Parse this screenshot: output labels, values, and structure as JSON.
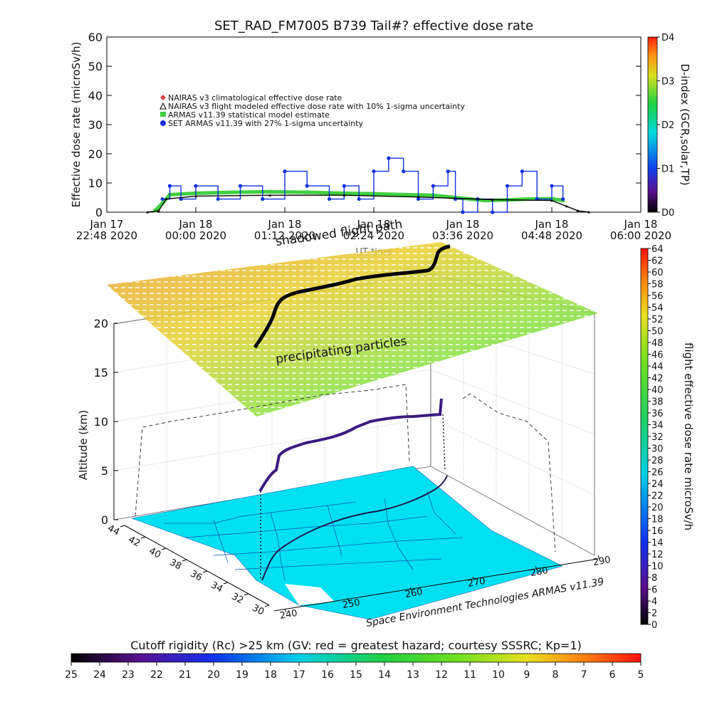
{
  "top_panel": {
    "title": "SET_RAD_FM7005   B739 Tail#? effective dose rate",
    "ylabel": "Effective dose rate (microSv/h)",
    "xlabel": "UT time",
    "right_axis_label": "D-index (GCR,solar,TP)",
    "right_ticks": [
      "D4",
      "D3",
      "D2",
      "D1",
      "D0"
    ],
    "right_tick_values": [
      4,
      3,
      2,
      1,
      0
    ],
    "xticks": [
      {
        "line1": "Jan 17",
        "line2": "22:48 2020",
        "h": -1.2
      },
      {
        "line1": "Jan 18",
        "line2": "00:00 2020",
        "h": 0.0
      },
      {
        "line1": "Jan 18",
        "line2": "01:12 2020",
        "h": 1.2
      },
      {
        "line1": "Jan 18",
        "line2": "02:24 2020",
        "h": 2.4
      },
      {
        "line1": "Jan 18",
        "line2": "03:36 2020",
        "h": 3.6
      },
      {
        "line1": "Jan 18",
        "line2": "04:48 2020",
        "h": 4.8
      },
      {
        "line1": "Jan 18",
        "line2": "06:00 2020",
        "h": 6.0
      }
    ],
    "legend": [
      {
        "label": "NAIRAS v3 climatological effective dose rate",
        "color": "#e04040",
        "marker": "diamond"
      },
      {
        "label": "NAIRAS v3 flight modeled effective dose rate with 10% 1-sigma uncertainty",
        "color": "#000000",
        "marker": "triangle"
      },
      {
        "label": "ARMAS v11.39 statistical model estimate",
        "color": "#40d040",
        "marker": "square"
      },
      {
        "label": "SET ARMAS v11.39 with 27% 1-sigma uncertainty",
        "color": "#1030e0",
        "marker": "circle"
      }
    ]
  },
  "chart_data": {
    "type": "scatter",
    "title": "SET_RAD_FM7005   B739 Tail#? effective dose rate",
    "xlabel": "UT time",
    "ylabel": "Effective dose rate (microSv/h)",
    "xlim_hours_from_jan18_0000": [
      -1.2,
      6.0
    ],
    "ylim": [
      0,
      60
    ],
    "yticks": [
      0,
      10,
      20,
      30,
      40,
      50,
      60
    ],
    "series": [
      {
        "name": "ARMAS v11.39 statistical model estimate",
        "x_hours": [
          -0.55,
          -0.45,
          -0.35,
          0.0,
          0.5,
          1.0,
          1.5,
          2.0,
          2.4,
          2.8,
          3.2,
          3.5,
          3.9,
          4.2,
          4.5,
          4.8,
          4.95
        ],
        "values": [
          0.5,
          3,
          6,
          6.5,
          6.8,
          7.0,
          6.8,
          6.5,
          6.3,
          6.0,
          5.8,
          5.0,
          4.0,
          4.2,
          4.5,
          4.6,
          4.0
        ]
      },
      {
        "name": "SET ARMAS v11.39 with 27% 1-sigma uncertainty",
        "x_hours": [
          -0.45,
          -0.35,
          -0.2,
          0.0,
          0.3,
          0.6,
          0.9,
          1.2,
          1.5,
          1.8,
          2.0,
          2.2,
          2.4,
          2.6,
          2.8,
          3.0,
          3.2,
          3.4,
          3.5,
          3.6,
          3.8,
          4.0,
          4.2,
          4.4,
          4.6,
          4.8,
          4.95
        ],
        "values": [
          4.5,
          9,
          4.5,
          9,
          4.5,
          9,
          4.5,
          14,
          9,
          4.5,
          9,
          4.5,
          14,
          18.5,
          14,
          4.5,
          9,
          14,
          4.5,
          0,
          4.5,
          0,
          9,
          14,
          4.5,
          9,
          4.5
        ]
      },
      {
        "name": "NAIRAS v3 flight modeled effective dose rate with 10% 1-sigma uncertainty",
        "x_hours": [
          -0.65,
          -0.5,
          -0.4,
          0.0,
          1.0,
          2.0,
          3.0,
          4.0,
          4.8,
          5.0,
          5.15,
          5.3
        ],
        "values": [
          0,
          0.5,
          4.5,
          5.5,
          5.8,
          5.8,
          5.2,
          4.3,
          4.0,
          2.0,
          0.5,
          0
        ]
      }
    ]
  },
  "bottom_panel": {
    "ylabel": "Altitude (km)",
    "alt_ticks": [
      "0",
      "5",
      "10",
      "15",
      "20"
    ],
    "alt_tick_values": [
      0,
      5,
      10,
      15,
      20
    ],
    "lat_ticks": [
      "44",
      "42",
      "40",
      "38",
      "36",
      "34",
      "32",
      "30"
    ],
    "lat_tick_values": [
      44,
      42,
      40,
      38,
      36,
      34,
      32,
      30
    ],
    "lon_ticks": [
      "240",
      "250",
      "260",
      "270",
      "280",
      "290"
    ],
    "lon_tick_values": [
      240,
      250,
      260,
      270,
      280,
      290
    ],
    "label_shadowed": "shadowed flight path",
    "label_precip": "precipitating particles",
    "credit": "Space Environment Technologies ARMAS v11.39",
    "right_colorbar_label": "flight effective dose rate microSv/h",
    "right_colorbar_ticks": [
      "64",
      "62",
      "60",
      "58",
      "56",
      "54",
      "52",
      "50",
      "48",
      "46",
      "44",
      "42",
      "40",
      "38",
      "36",
      "34",
      "32",
      "30",
      "28",
      "26",
      "24",
      "22",
      "20",
      "18",
      "16",
      "14",
      "12",
      "10",
      "8",
      "6",
      "4",
      "2",
      "0"
    ],
    "right_colorbar_values": [
      64,
      62,
      60,
      58,
      56,
      54,
      52,
      50,
      48,
      46,
      44,
      42,
      40,
      38,
      36,
      34,
      32,
      30,
      28,
      26,
      24,
      22,
      20,
      18,
      16,
      14,
      12,
      10,
      8,
      6,
      4,
      2,
      0
    ],
    "cutoff_title": "Cutoff rigidity (Rc) >25 km (GV: red = greatest hazard; courtesy SSSRC; Kp=1)",
    "cutoff_ticks": [
      "25",
      "24",
      "23",
      "22",
      "21",
      "20",
      "19",
      "18",
      "17",
      "16",
      "15",
      "14",
      "13",
      "12",
      "11",
      "10",
      "9",
      "8",
      "7",
      "6",
      "5"
    ],
    "cutoff_values": [
      25,
      24,
      23,
      22,
      21,
      20,
      19,
      18,
      17,
      16,
      15,
      14,
      13,
      12,
      11,
      10,
      9,
      8,
      7,
      6,
      5
    ]
  }
}
